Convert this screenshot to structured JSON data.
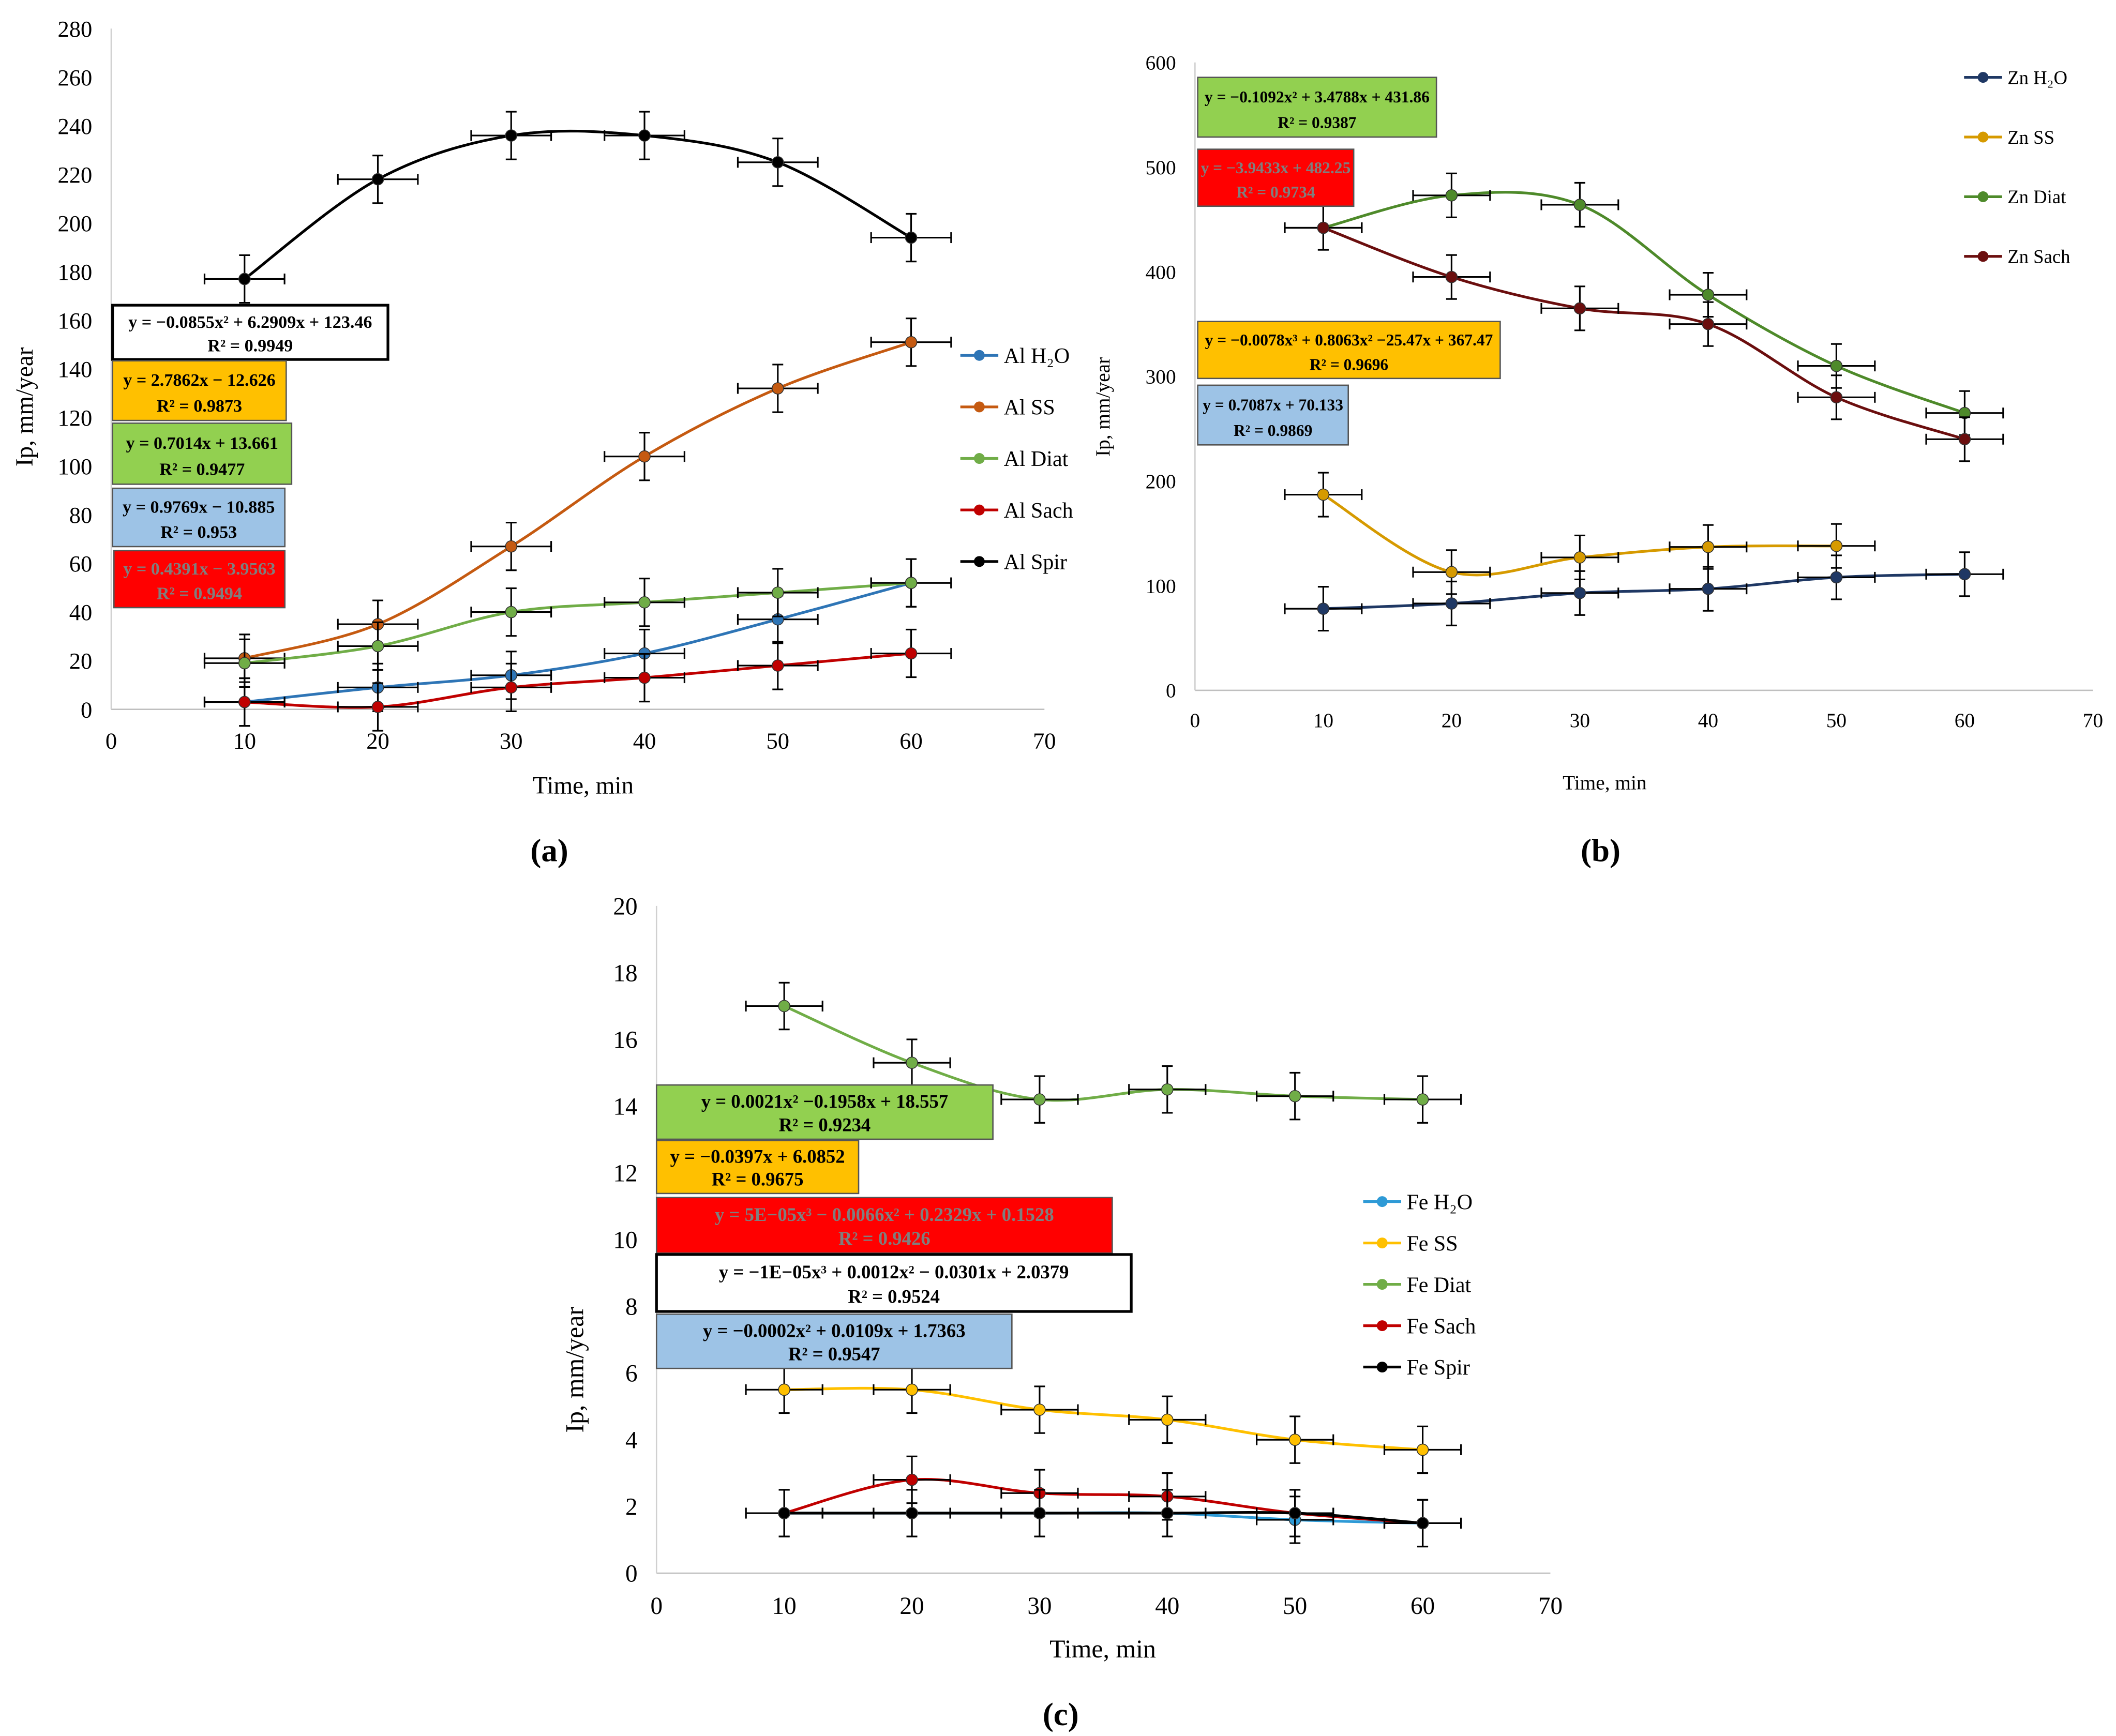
{
  "chart_data": [
    {
      "type": "line",
      "panel_label": "(a)",
      "xlabel": "Time, min",
      "ylabel": "Ip, mm/year",
      "xlim": [
        0,
        70
      ],
      "ylim": [
        0,
        280
      ],
      "xticks": [
        "0",
        "10",
        "20",
        "30",
        "40",
        "50",
        "60",
        "70"
      ],
      "yticks": [
        "0",
        "20",
        "40",
        "60",
        "80",
        "100",
        "120",
        "140",
        "160",
        "180",
        "200",
        "220",
        "240",
        "260",
        "280"
      ],
      "x": [
        10,
        20,
        30,
        40,
        50,
        60
      ],
      "legend_position": "right",
      "series": [
        {
          "name": "Al H₂O",
          "color": "#2e75b6",
          "values": [
            3,
            9,
            14,
            23,
            37,
            52
          ]
        },
        {
          "name": "Al SS",
          "color": "#c55a11",
          "values": [
            21,
            35,
            67,
            104,
            132,
            151
          ]
        },
        {
          "name": "Al Diat",
          "color": "#70ad47",
          "values": [
            19,
            26,
            40,
            44,
            48,
            52
          ]
        },
        {
          "name": "Al Sach",
          "color": "#c00000",
          "values": [
            3,
            1,
            9,
            13,
            18,
            23
          ]
        },
        {
          "name": "Al Spir",
          "color": "#000000",
          "values": [
            177,
            218,
            236,
            236,
            225,
            194
          ]
        }
      ],
      "trendline_labels": [
        {
          "eq": "y = −0.0855x² + 6.2909x + 123.46",
          "r2": "R² = 0.9949",
          "fill": "#ffffff",
          "text_color": "#000000"
        },
        {
          "eq": "y = 2.7862x − 12.626",
          "r2": "R² = 0.9873",
          "fill": "#ffc000",
          "text_color": "#000000"
        },
        {
          "eq": "y = 0.7014x + 13.661",
          "r2": "R² = 0.9477",
          "fill": "#92d050",
          "text_color": "#000000"
        },
        {
          "eq": "y = 0.9769x − 10.885",
          "r2": "R² = 0.953",
          "fill": "#9dc3e6",
          "text_color": "#000000"
        },
        {
          "eq": "y = 0.4391x − 3.9563",
          "r2": "R² = 0.9494",
          "fill": "#ff0000",
          "text_color": "#7f7f7f"
        }
      ]
    },
    {
      "type": "line",
      "panel_label": "(b)",
      "xlabel": "Time, min",
      "ylabel": "Ip, mm/year",
      "xlim": [
        0,
        70
      ],
      "ylim": [
        0,
        600
      ],
      "xticks": [
        "0",
        "10",
        "20",
        "30",
        "40",
        "50",
        "60",
        "70"
      ],
      "yticks": [
        "0",
        "100",
        "200",
        "300",
        "400",
        "500",
        "600"
      ],
      "x": [
        10,
        20,
        30,
        40,
        50,
        60
      ],
      "legend_position": "top-right",
      "series": [
        {
          "name": "Zn H₂O",
          "color": "#1f3864",
          "values": [
            78,
            83,
            93,
            97,
            108,
            111
          ]
        },
        {
          "name": "Zn SS",
          "color": "#d69a00",
          "values": [
            187,
            113,
            127,
            137,
            138,
            null
          ]
        },
        {
          "name": "Zn Diat",
          "color": "#4e8a2a",
          "values": [
            442,
            473,
            464,
            378,
            310,
            265
          ]
        },
        {
          "name": "Zn Sach",
          "color": "#6b0e0e",
          "values": [
            442,
            395,
            365,
            350,
            280,
            240
          ]
        }
      ],
      "trendline_labels": [
        {
          "eq": "y = −0.1092x² + 3.4788x + 431.86",
          "r2": "R² = 0.9387",
          "fill": "#92d050",
          "text_color": "#000000"
        },
        {
          "eq": "y = −3.9433x + 482.25",
          "r2": "R² = 0.9734",
          "fill": "#ff0000",
          "text_color": "#7f7f7f"
        },
        {
          "eq": "y = −0.0078x³ + 0.8063x² −25.47x + 367.47",
          "r2": "R² = 0.9696",
          "fill": "#ffc000",
          "text_color": "#000000"
        },
        {
          "eq": "y = 0.7087x + 70.133",
          "r2": "R² = 0.9869",
          "fill": "#9dc3e6",
          "text_color": "#000000"
        }
      ]
    },
    {
      "type": "line",
      "panel_label": "(c)",
      "xlabel": "Time, min",
      "ylabel": "Ip, mm/year",
      "xlim": [
        0,
        70
      ],
      "ylim": [
        0,
        20
      ],
      "xticks": [
        "0",
        "10",
        "20",
        "30",
        "40",
        "50",
        "60",
        "70"
      ],
      "yticks": [
        "0",
        "2",
        "4",
        "6",
        "8",
        "10",
        "12",
        "14",
        "16",
        "18",
        "20"
      ],
      "x": [
        10,
        20,
        30,
        40,
        50,
        60
      ],
      "legend_position": "right",
      "series": [
        {
          "name": "Fe  H₂O",
          "color": "#2e9ad6",
          "values": [
            1.8,
            1.8,
            1.8,
            1.8,
            1.6,
            1.5
          ]
        },
        {
          "name": "Fe SS",
          "color": "#ffc000",
          "values": [
            5.5,
            5.5,
            4.9,
            4.6,
            4.0,
            3.7
          ]
        },
        {
          "name": "Fe Diat",
          "color": "#70ad47",
          "values": [
            17.0,
            15.3,
            14.2,
            14.5,
            14.3,
            14.2
          ]
        },
        {
          "name": "Fe Sach",
          "color": "#c00000",
          "values": [
            1.8,
            2.8,
            2.4,
            2.3,
            1.8,
            1.5
          ]
        },
        {
          "name": "Fe Spir",
          "color": "#000000",
          "values": [
            1.8,
            1.8,
            1.8,
            1.8,
            1.8,
            1.5
          ]
        }
      ],
      "trendline_labels": [
        {
          "eq": "y = 0.0021x² −0.1958x + 18.557",
          "r2": "R² = 0.9234",
          "fill": "#92d050",
          "text_color": "#000000"
        },
        {
          "eq": "y = −0.0397x + 6.0852",
          "r2": "R² = 0.9675",
          "fill": "#ffc000",
          "text_color": "#000000"
        },
        {
          "eq": "y = 5E−05x³ − 0.0066x² + 0.2329x + 0.1528",
          "r2": "R² = 0.9426",
          "fill": "#ff0000",
          "text_color": "#7f7f7f"
        },
        {
          "eq": "y = −1E−05x³ + 0.0012x² − 0.0301x + 2.0379",
          "r2": "R² = 0.9524",
          "fill": "#ffffff",
          "text_color": "#000000"
        },
        {
          "eq": "y = −0.0002x² + 0.0109x + 1.7363",
          "r2": "R² = 0.9547",
          "fill": "#9dc3e6",
          "text_color": "#000000"
        }
      ]
    }
  ]
}
